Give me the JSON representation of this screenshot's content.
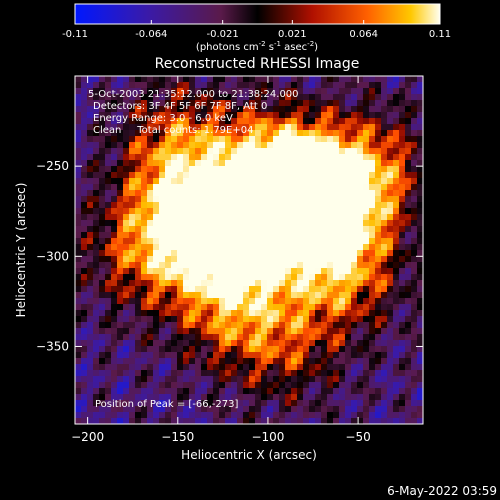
{
  "chart_data": {
    "type": "heatmap",
    "title": "Reconstructed RHESSI Image",
    "colorbar": {
      "min": -0.11,
      "max": 0.11,
      "ticks": [
        "-0.11",
        "-0.064",
        "-0.021",
        "0.021",
        "0.064",
        "0.11"
      ],
      "unit_main": "(photons cm",
      "unit_exp1": "-2",
      "unit_s": " s",
      "unit_exp2": "-1",
      "unit_asec": " asec",
      "unit_exp3": "-2",
      "unit_close": ")"
    },
    "annotations": [
      "5-Oct-2003 21:35:12.000 to 21:38:24.000",
      "Detectors: 3F 4F 5F 6F 7F 8F, Att 0",
      "Energy Range: 3.0 - 6.0 keV",
      "Clean     Total counts: 1.79E+04"
    ],
    "peak_label": "Position of Peak = [-66,-273]",
    "peak": [
      -66,
      -273
    ],
    "xlabel": "Heliocentric X (arcsec)",
    "ylabel": "Heliocentric Y (arcsec)",
    "xlim": [
      -207,
      -14
    ],
    "ylim": [
      -393,
      -200
    ],
    "xticks": [
      -200,
      -150,
      -100,
      -50
    ],
    "yticks": [
      -250,
      -300,
      -350
    ],
    "sources": [
      {
        "x": -66,
        "y": -273,
        "flux": 0.11
      },
      {
        "x": -80,
        "y": -260,
        "flux": 0.085
      },
      {
        "x": -130,
        "y": -290,
        "flux": 0.095
      },
      {
        "x": -110,
        "y": -285,
        "flux": 0.08
      },
      {
        "x": -100,
        "y": -250,
        "flux": 0.07
      },
      {
        "x": -150,
        "y": -270,
        "flux": 0.055
      },
      {
        "x": -60,
        "y": -310,
        "flux": 0.065
      },
      {
        "x": -120,
        "y": -330,
        "flux": 0.05
      },
      {
        "x": -170,
        "y": -300,
        "flux": 0.04
      },
      {
        "x": -40,
        "y": -250,
        "flux": 0.04
      },
      {
        "x": -90,
        "y": -350,
        "flux": 0.03
      },
      {
        "x": -150,
        "y": -235,
        "flux": 0.045
      }
    ]
  },
  "footer": {
    "date": "6-May-2022 03:59"
  }
}
